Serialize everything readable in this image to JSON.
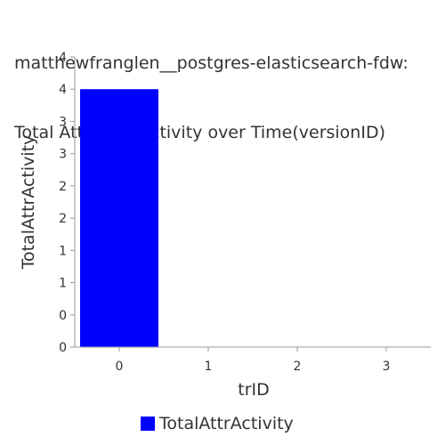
{
  "title_lines": [
    "matthewfranglen__postgres-elasticsearch-fdw:",
    "Total Attribute Activity over Time(versionID)"
  ],
  "colors": {
    "bar": "#0000ff",
    "axis": "#999999",
    "text": "#333333"
  },
  "chart_data": {
    "type": "bar",
    "title": "matthewfranglen__postgres-elasticsearch-fdw: Total Attribute Activity over Time(versionID)",
    "xlabel": "trID",
    "ylabel": "TotalAttrActivity",
    "categories": [
      "0",
      "1",
      "2",
      "3"
    ],
    "series": [
      {
        "name": "TotalAttrActivity",
        "values": [
          4,
          0,
          0,
          0
        ]
      }
    ],
    "ylim": [
      0,
      4.5
    ],
    "y_tick_labels": [
      "0",
      "0",
      "1",
      "1",
      "2",
      "2",
      "3",
      "3",
      "4",
      "4"
    ],
    "grid": false,
    "legend": "bottom"
  }
}
